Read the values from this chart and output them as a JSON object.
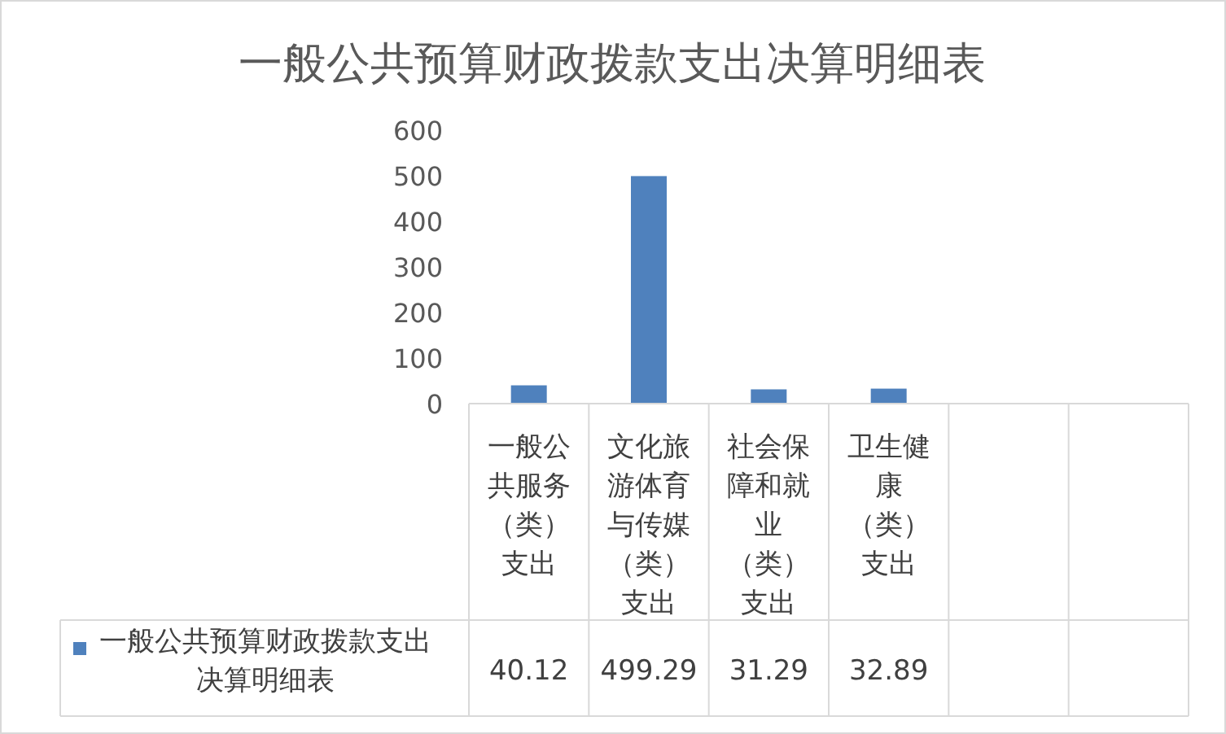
{
  "chart_data": {
    "type": "bar",
    "title": "一般公共预算财政拨款支出决算明细表",
    "categories": [
      "一般公共服务（类）支出",
      "文化旅游体育与传媒（类）支出",
      "社会保障和就业（类）支出",
      "卫生健康（类）支出",
      null,
      null
    ],
    "series": [
      {
        "name": "一般公共预算财政拨款支出决算明细表",
        "color": "#4f81bd",
        "values": [
          40.12,
          499.29,
          31.29,
          32.89,
          null,
          null
        ]
      }
    ],
    "ylim": [
      0,
      600
    ],
    "yticks": [
      0,
      100,
      200,
      300,
      400,
      500,
      600
    ],
    "data_labels": true,
    "legend": "bottom",
    "grid": false
  }
}
